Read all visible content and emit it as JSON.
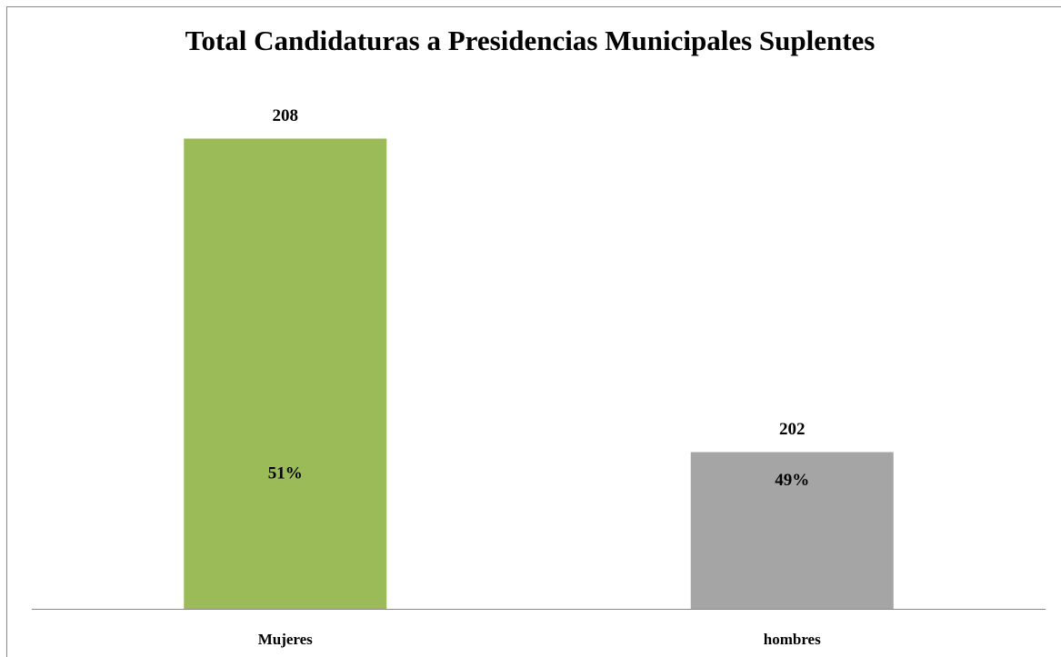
{
  "chart_data": {
    "type": "bar",
    "title": "Total Candidaturas a Presidencias Municipales Suplentes",
    "categories": [
      "Mujeres",
      "hombres"
    ],
    "values": [
      208,
      202
    ],
    "percentages": [
      51,
      49
    ],
    "percentage_labels": [
      "51%",
      "49%"
    ],
    "colors": [
      "#9bbb59",
      "#a5a5a5"
    ],
    "ylim": [
      199,
      209
    ]
  }
}
